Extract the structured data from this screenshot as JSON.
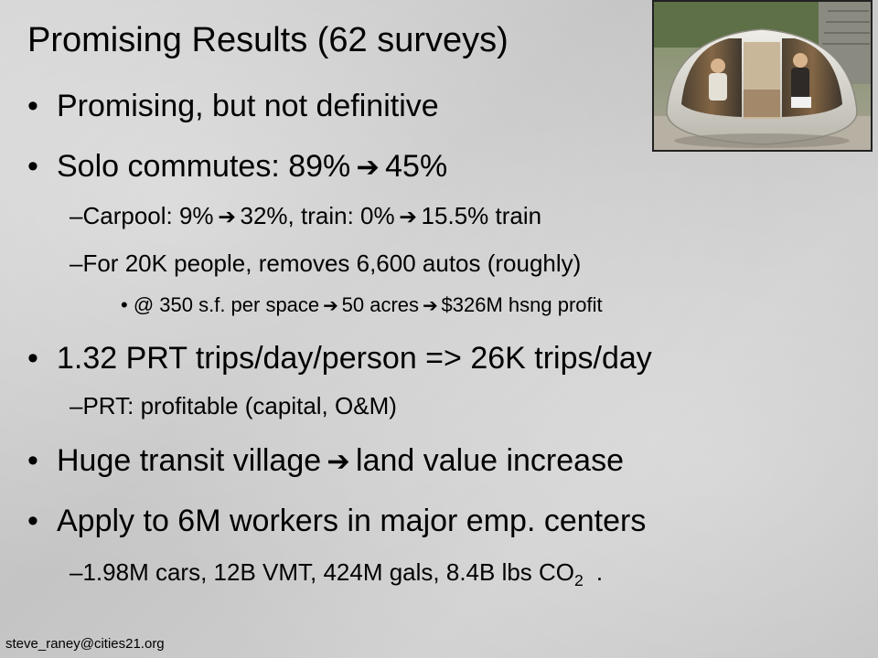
{
  "slide": {
    "title": "Promising Results (62 surveys)",
    "footer_email": "steve_raney@cities21.org"
  },
  "photo": {
    "icon": "prt-vehicle-photo"
  },
  "bullets": {
    "b1": "Promising, but not definitive",
    "b2_a": "Solo commutes: 89%",
    "b2_b": "45%",
    "b2_1a": "Carpool: 9%",
    "b2_1b": "32%, train: 0%",
    "b2_1c": "15.5% train",
    "b2_2": "For 20K people, removes 6,600 autos (roughly)",
    "b2_2_1a": "@ 350 s.f. per space",
    "b2_2_1b": "50 acres",
    "b2_2_1c": "$326M hsng profit",
    "b3": "1.32 PRT trips/day/person => 26K trips/day",
    "b3_1": "PRT: profitable (capital, O&M)",
    "b4_a": "Huge transit village",
    "b4_b": "land value increase",
    "b5": "Apply to 6M workers in major emp. centers",
    "b5_1": "1.98M cars, 12B VMT, 424M gals, 8.4B lbs CO",
    "b5_1_sub": "2",
    "b5_1_tail": "."
  },
  "symbols": {
    "bullet": "•",
    "dash": "–",
    "arrow": "➔"
  }
}
